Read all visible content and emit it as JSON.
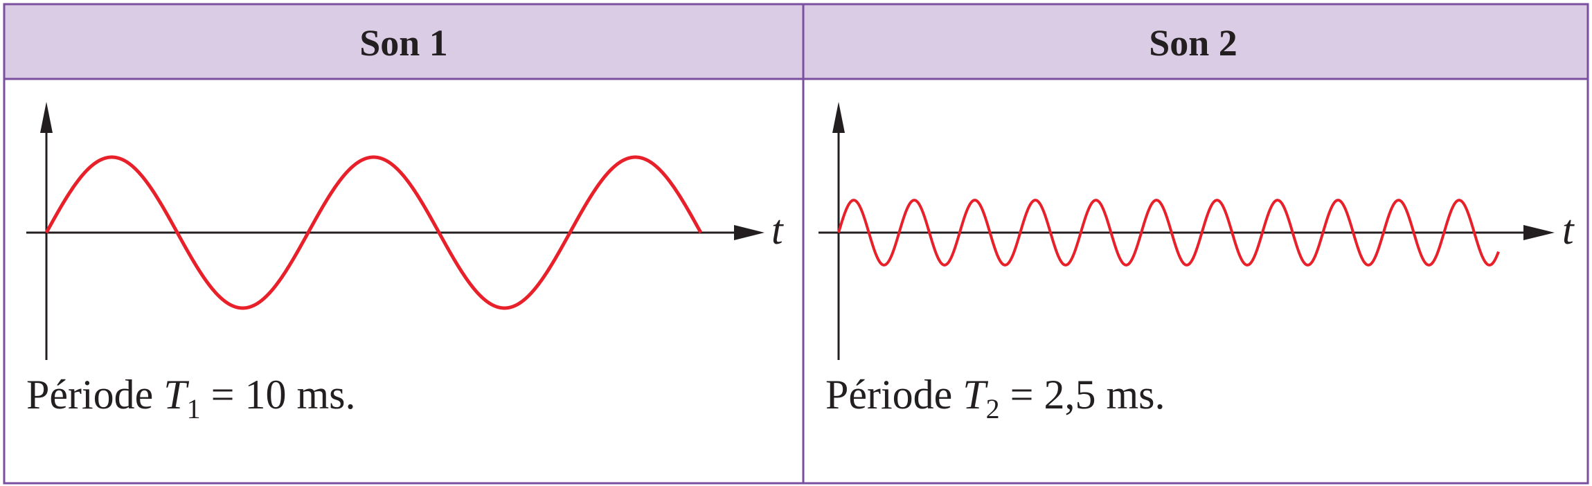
{
  "colors": {
    "header_fill": "#d9cce4",
    "border": "#7b4fa0",
    "wave": "#e8202a",
    "axis": "#231f20"
  },
  "panels": [
    {
      "title": "Son 1",
      "axis_label": "t",
      "caption": {
        "prefix": "Période ",
        "symbol": "T",
        "subscript": "1",
        "suffix": " = 10 ms."
      }
    },
    {
      "title": "Son 2",
      "axis_label": "t",
      "caption": {
        "prefix": "Période ",
        "symbol": "T",
        "subscript": "2",
        "suffix": " = 2,5 ms."
      }
    }
  ],
  "chart_data": [
    {
      "type": "line",
      "xlabel": "t",
      "function": "sine",
      "period_ms": 10,
      "cycles_shown": 2.5,
      "relative_amplitude": 1.0
    },
    {
      "type": "line",
      "xlabel": "t",
      "function": "sine",
      "period_ms": 2.5,
      "cycles_shown": 10.9,
      "relative_amplitude": 0.43
    }
  ]
}
